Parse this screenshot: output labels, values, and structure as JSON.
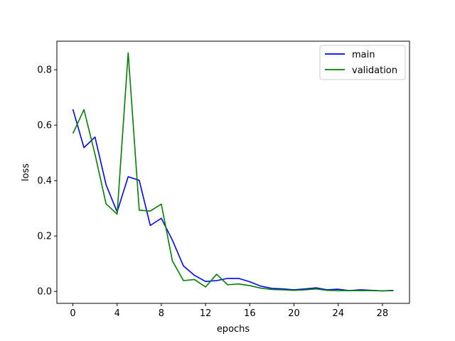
{
  "chart_data": {
    "type": "line",
    "title": "",
    "xlabel": "epochs",
    "ylabel": "loss",
    "xlim": [
      -1.45,
      30.45
    ],
    "ylim": [
      -0.043,
      0.903
    ],
    "xticks": [
      0,
      4,
      8,
      12,
      16,
      20,
      24,
      28
    ],
    "yticks": [
      0.0,
      0.2,
      0.4,
      0.6,
      0.8
    ],
    "ytick_labels": [
      "0.0",
      "0.2",
      "0.4",
      "0.6",
      "0.8"
    ],
    "grid": false,
    "legend_position": "top-right",
    "x": [
      0,
      1,
      2,
      3,
      4,
      5,
      6,
      7,
      8,
      9,
      10,
      11,
      12,
      13,
      14,
      15,
      16,
      17,
      18,
      19,
      20,
      21,
      22,
      23,
      24,
      25,
      26,
      27,
      28,
      29
    ],
    "series": [
      {
        "name": "main",
        "color": "#0000ff",
        "values": [
          0.657,
          0.519,
          0.557,
          0.385,
          0.287,
          0.414,
          0.401,
          0.238,
          0.264,
          0.185,
          0.092,
          0.058,
          0.036,
          0.039,
          0.047,
          0.047,
          0.035,
          0.019,
          0.011,
          0.009,
          0.006,
          0.009,
          0.013,
          0.006,
          0.008,
          0.003,
          0.006,
          0.004,
          0.002,
          0.004
        ]
      },
      {
        "name": "validation",
        "color": "#008000",
        "values": [
          0.57,
          0.656,
          0.495,
          0.316,
          0.279,
          0.861,
          0.293,
          0.29,
          0.315,
          0.11,
          0.039,
          0.043,
          0.016,
          0.062,
          0.024,
          0.027,
          0.021,
          0.012,
          0.007,
          0.006,
          0.004,
          0.006,
          0.009,
          0.004,
          0.003,
          0.003,
          0.003,
          0.003,
          0.002,
          0.003
        ]
      }
    ]
  }
}
